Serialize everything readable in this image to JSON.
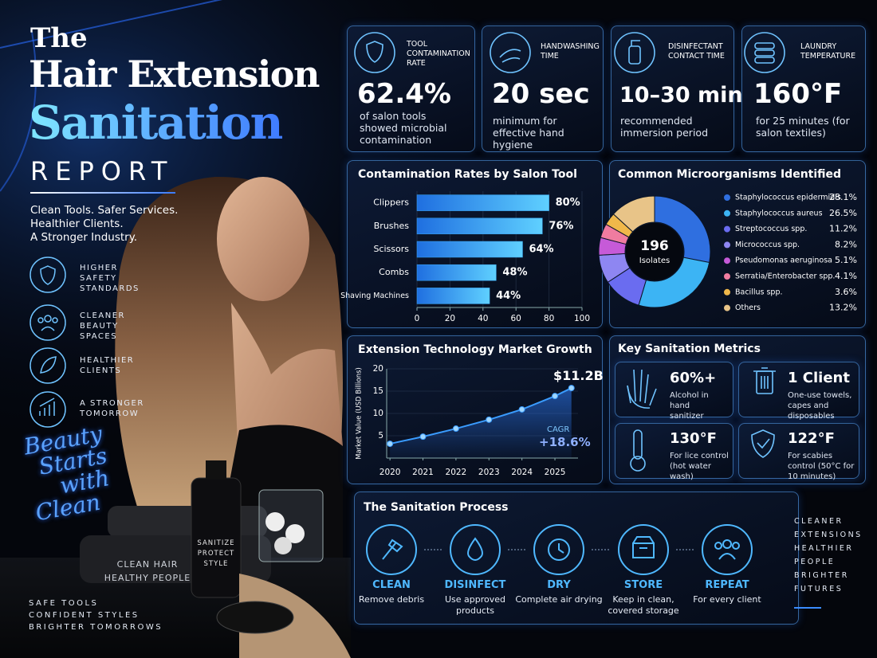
{
  "header": {
    "title_lines": [
      "The",
      "Hair Extension",
      "Sanitation",
      "REPORT"
    ],
    "tagline_lines": [
      "Clean Tools. Safer Services.",
      "Healthier Clients.",
      "A Stronger Industry."
    ]
  },
  "features": [
    "HIGHER SAFETY STANDARDS",
    "CLEANER BEAUTY SPACES",
    "HEALTHIER CLIENTS",
    "A STRONGER TOMORROW"
  ],
  "script_lines": [
    "Beauty",
    "Starts",
    "with",
    "Clean"
  ],
  "towel_text": "CLEAN HAIR HEALTHY PEOPLE",
  "bottle_text": "SANITIZE PROTECT STYLE",
  "bottom_left": [
    "SAFE TOOLS",
    "CONFIDENT STYLES",
    "BRIGHTER TOMORROWS"
  ],
  "bottom_right": [
    "CLEANER",
    "EXTENSIONS",
    "HEALTHIER",
    "PEOPLE",
    "BRIGHTER",
    "FUTURES"
  ],
  "kpis": [
    {
      "label": "TOOL CONTAMINATION RATE",
      "value": "62.4%",
      "desc": "of salon tools showed microbial contamination"
    },
    {
      "label": "HANDWASHING TIME",
      "value": "20 sec",
      "desc": "minimum for effective hand hygiene"
    },
    {
      "label": "DISINFECTANT CONTACT TIME",
      "value": "10–30 min",
      "desc": "recommended immersion period"
    },
    {
      "label": "LAUNDRY TEMPERATURE",
      "value": "160°F",
      "desc": "for 25 minutes (for salon textiles)"
    }
  ],
  "chart_data": [
    {
      "type": "bar",
      "orientation": "horizontal",
      "title": "Contamination Rates by Salon Tool",
      "categories": [
        "Clippers",
        "Brushes",
        "Scissors",
        "Combs",
        "Shaving Machines"
      ],
      "values": [
        80,
        76,
        64,
        48,
        44
      ],
      "value_labels": [
        "80%",
        "76%",
        "64%",
        "48%",
        "44%"
      ],
      "color": "#3aa8f5",
      "xlim": [
        0,
        100
      ],
      "xticks": [
        0,
        20,
        40,
        60,
        80,
        100
      ],
      "grid": true
    },
    {
      "type": "donut",
      "title": "Common Microorganisms Identified",
      "center_value": 196,
      "center_label": "Isolates",
      "categories": [
        "Staphylococcus epidermidis",
        "Staphylococcus aureus",
        "Streptococcus spp.",
        "Micrococcus spp.",
        "Pseudomonas aeruginosa",
        "Serratia/Enterobacter spp.",
        "Bacillus spp.",
        "Others"
      ],
      "values": [
        28.1,
        26.5,
        11.2,
        8.2,
        5.1,
        4.1,
        3.6,
        13.2
      ],
      "value_labels": [
        "28.1%",
        "26.5%",
        "11.2%",
        "8.2%",
        "5.1%",
        "4.1%",
        "3.6%",
        "13.2%"
      ],
      "colors": [
        "#2f6fe0",
        "#3cb4f4",
        "#6a6cf0",
        "#8e86f2",
        "#c65ad8",
        "#f07ca0",
        "#f0b84a",
        "#e8c488"
      ]
    },
    {
      "type": "line",
      "title": "Extension Technology Market Growth",
      "y_label": "Market Value (USD Billions)",
      "x": [
        2020,
        2021,
        2022,
        2023,
        2024,
        2025,
        2025.5
      ],
      "values": [
        3.2,
        4.8,
        6.6,
        8.6,
        10.9,
        13.9,
        15.7
      ],
      "color": "#3a9cff",
      "xlim": [
        2019.9,
        2025.7
      ],
      "xticks": [
        2020,
        2021,
        2022,
        2023,
        2024,
        2025
      ],
      "ylim": [
        0,
        20
      ],
      "yticks": [
        5,
        10,
        15,
        20
      ],
      "grid": true,
      "annotations": [
        "$11.2B",
        "CAGR",
        "+18.6%"
      ]
    }
  ],
  "metrics": {
    "title": "Key Sanitation Metrics",
    "items": [
      {
        "value": "60%+",
        "desc": "Alcohol in hand sanitizer"
      },
      {
        "value": "1 Client",
        "desc": "One-use towels, capes and disposables"
      },
      {
        "value": "130°F",
        "desc": "For lice control (hot water wash)"
      },
      {
        "value": "122°F",
        "desc": "For scabies control (50°C for 10 minutes)"
      }
    ]
  },
  "process": {
    "title": "The Sanitation Process",
    "steps": [
      {
        "name": "CLEAN",
        "desc": "Remove debris"
      },
      {
        "name": "DISINFECT",
        "desc": "Use approved products"
      },
      {
        "name": "DRY",
        "desc": "Complete air drying"
      },
      {
        "name": "STORE",
        "desc": "Keep in clean, covered storage"
      },
      {
        "name": "REPEAT",
        "desc": "For every client"
      }
    ]
  }
}
